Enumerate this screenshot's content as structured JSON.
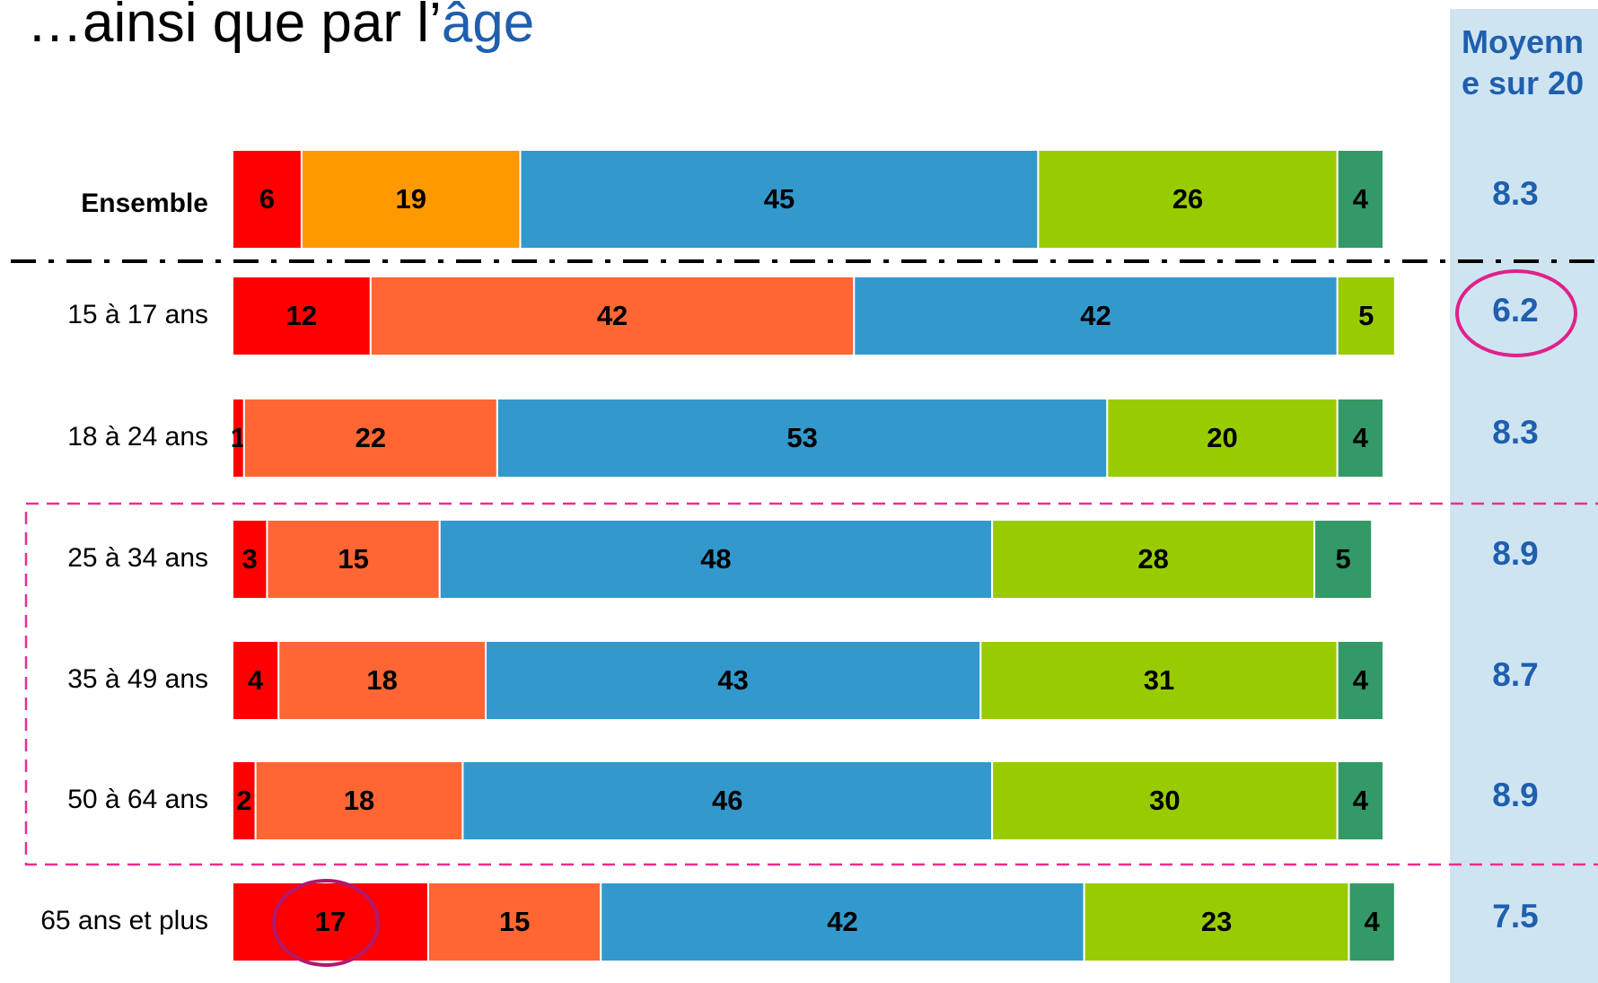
{
  "chart_data": {
    "type": "stacked-barh",
    "title": [
      "…ainsi que par l’",
      "âge"
    ],
    "categories": [
      "Ensemble",
      "15 à 17 ans",
      "18 à 24 ans",
      "25 à 34 ans",
      "35 à 49 ans",
      "50 à 64 ans",
      "65 ans et plus"
    ],
    "xlim": [
      0,
      100
    ],
    "series": [
      {
        "color": "#ff0000",
        "values": [
          6,
          12,
          1,
          3,
          4,
          2,
          17
        ]
      },
      {
        "color": "#ff6633",
        "colors": [
          "#ff9900",
          "#ff6633",
          "#ff6633",
          "#ff6633",
          "#ff6633",
          "#ff6633",
          "#ff6633"
        ],
        "values": [
          19,
          42,
          22,
          15,
          18,
          18,
          15
        ]
      },
      {
        "color": "#3399cc",
        "values": [
          45,
          42,
          53,
          48,
          43,
          46,
          42
        ]
      },
      {
        "color": "#99cc00",
        "values": [
          26,
          5,
          20,
          28,
          31,
          30,
          23
        ]
      },
      {
        "color": "#339966",
        "values": [
          4,
          null,
          4,
          5,
          4,
          4,
          4
        ]
      }
    ],
    "mean_header": "Moyenne sur 20",
    "means": [
      8.3,
      6.2,
      8.3,
      8.9,
      8.7,
      8.9,
      7.5
    ]
  }
}
